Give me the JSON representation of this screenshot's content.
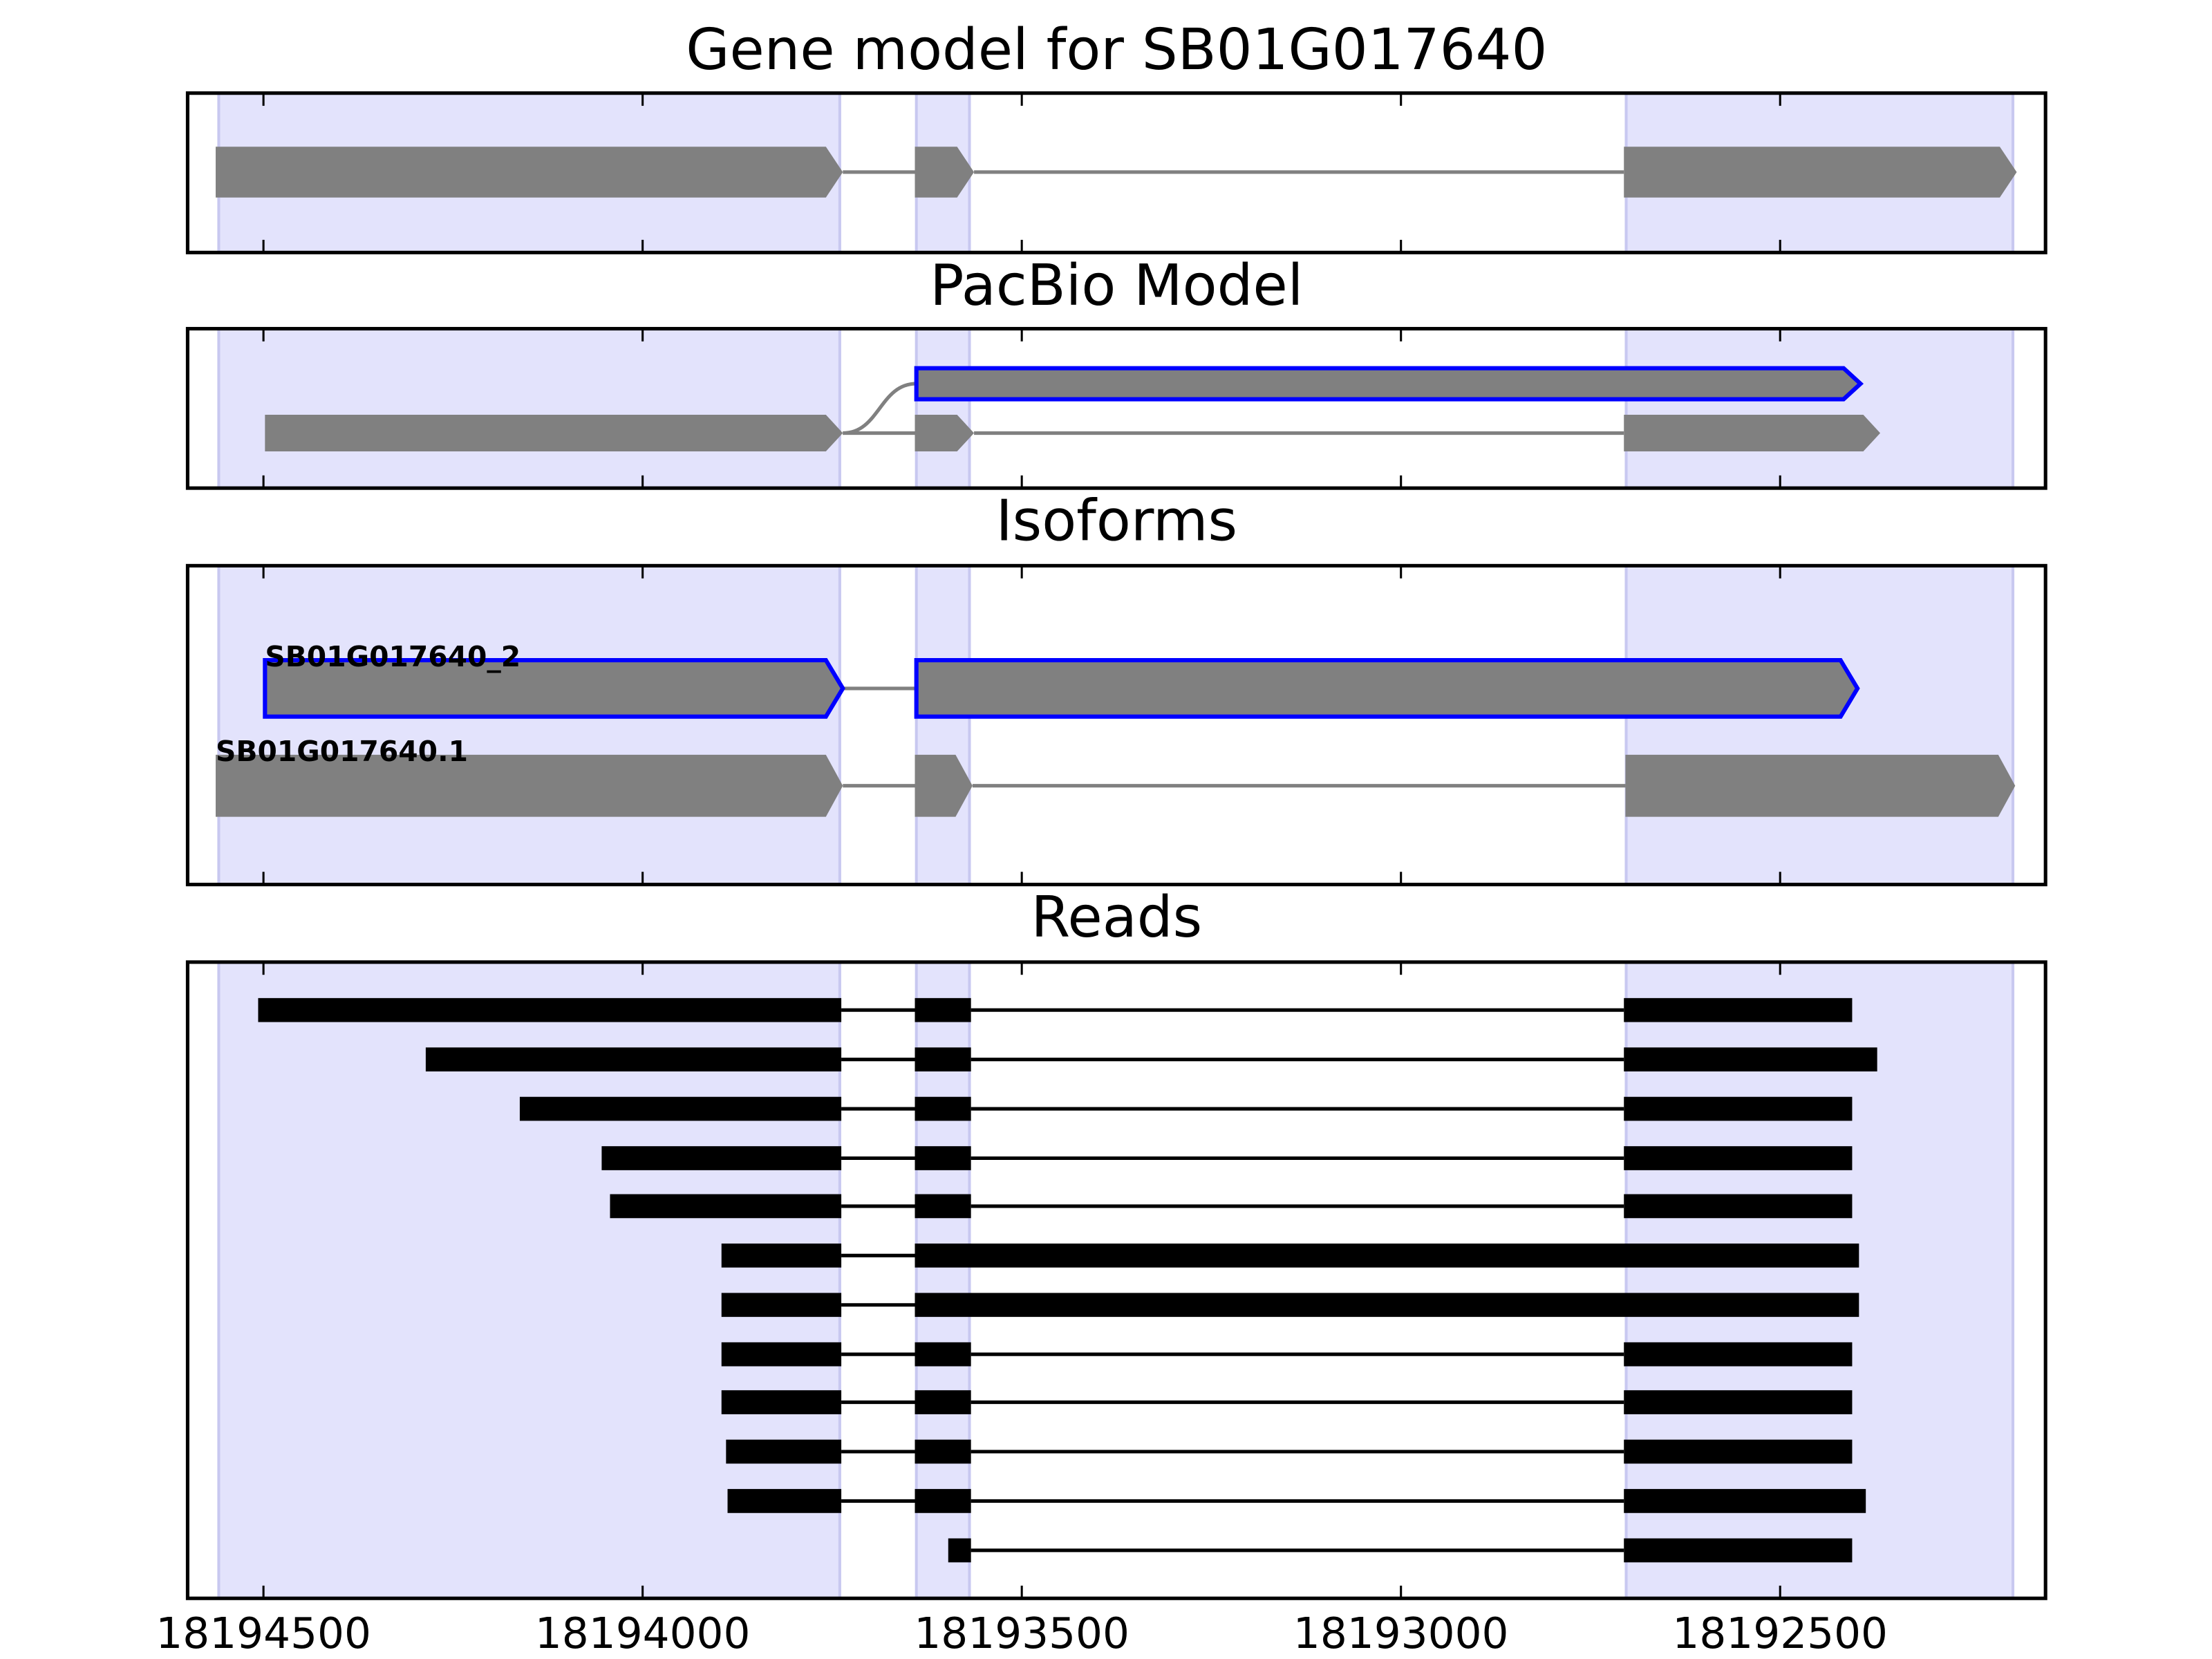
{
  "chart_data": [
    {
      "type": "gene",
      "title": "Gene model for SB01G017640",
      "xlim": [
        18194600,
        18192150
      ],
      "xticks": [
        18194500,
        18194000,
        18193500,
        18193000,
        18192500
      ],
      "highlights": [
        [
          18194559,
          18193740
        ],
        [
          18193639,
          18193569
        ],
        [
          18192703,
          18192193
        ]
      ],
      "highlight_color": "#e3e3fc",
      "color": "#808080",
      "line_color": "#808080",
      "rows": [
        {
          "blocks": [
            [
              18194563,
              18193736
            ],
            [
              18193641,
              18193563
            ],
            [
              18192706,
              18192188
            ]
          ]
        }
      ]
    },
    {
      "type": "gene",
      "title": "PacBio Model",
      "xlim": [
        18194600,
        18192150
      ],
      "xticks": [
        18194500,
        18194000,
        18193500,
        18193000,
        18192500
      ],
      "highlights": [
        [
          18194559,
          18193740
        ],
        [
          18193639,
          18193569
        ],
        [
          18192703,
          18192193
        ]
      ],
      "highlight_color": "#e3e3fc",
      "color": "#808080",
      "line_color": "#808080",
      "rows": [
        {
          "outline": "#0000ff",
          "blocks": [
            [
              18193639,
              18192394
            ]
          ]
        },
        {
          "blocks": [
            [
              18194498,
              18193736
            ],
            [
              18193641,
              18193563
            ],
            [
              18192706,
              18192368
            ]
          ]
        }
      ]
    },
    {
      "type": "gene",
      "title": "Isoforms",
      "xlim": [
        18194600,
        18192150
      ],
      "xticks": [
        18194500,
        18194000,
        18193500,
        18193000,
        18192500
      ],
      "highlights": [
        [
          18194559,
          18193740
        ],
        [
          18193639,
          18193569
        ],
        [
          18192703,
          18192193
        ]
      ],
      "highlight_color": "#e3e3fc",
      "color": "#808080",
      "line_color": "#808080",
      "rows": [
        {
          "label": "SB01G017640_2",
          "outline": "#0000ff",
          "blocks": [
            [
              18194498,
              18193736
            ],
            [
              18193639,
              18192398
            ]
          ]
        },
        {
          "label": "SB01G017640.1",
          "blocks": [
            [
              18194563,
              18193736
            ],
            [
              18193641,
              18193565
            ],
            [
              18192704,
              18192190
            ]
          ]
        }
      ]
    },
    {
      "type": "reads",
      "title": "Reads",
      "xlim": [
        18194600,
        18192150
      ],
      "xticks": [
        18194500,
        18194000,
        18193500,
        18193000,
        18192500
      ],
      "highlights": [
        [
          18194559,
          18193740
        ],
        [
          18193639,
          18193569
        ],
        [
          18192703,
          18192193
        ]
      ],
      "highlight_color": "#e3e3fc",
      "color": "#000000",
      "line_color": "#000000",
      "rows": [
        {
          "blocks": [
            [
              18194507,
              18193738
            ],
            [
              18193641,
              18193567
            ],
            [
              18192706,
              18192405
            ]
          ]
        },
        {
          "blocks": [
            [
              18194286,
              18193738
            ],
            [
              18193641,
              18193567
            ],
            [
              18192706,
              18192372
            ]
          ]
        },
        {
          "blocks": [
            [
              18194162,
              18193738
            ],
            [
              18193641,
              18193567
            ],
            [
              18192706,
              18192405
            ]
          ]
        },
        {
          "blocks": [
            [
              18194054,
              18193738
            ],
            [
              18193641,
              18193567
            ],
            [
              18192706,
              18192405
            ]
          ]
        },
        {
          "blocks": [
            [
              18194043,
              18193738
            ],
            [
              18193641,
              18193567
            ],
            [
              18192706,
              18192405
            ]
          ]
        },
        {
          "blocks": [
            [
              18193896,
              18193738
            ],
            [
              18193641,
              18192396
            ]
          ]
        },
        {
          "blocks": [
            [
              18193896,
              18193738
            ],
            [
              18193641,
              18192396
            ]
          ]
        },
        {
          "blocks": [
            [
              18193896,
              18193738
            ],
            [
              18193641,
              18193567
            ],
            [
              18192706,
              18192405
            ]
          ]
        },
        {
          "blocks": [
            [
              18193896,
              18193738
            ],
            [
              18193641,
              18193567
            ],
            [
              18192706,
              18192405
            ]
          ]
        },
        {
          "blocks": [
            [
              18193890,
              18193738
            ],
            [
              18193641,
              18193567
            ],
            [
              18192706,
              18192405
            ]
          ]
        },
        {
          "blocks": [
            [
              18193888,
              18193738
            ],
            [
              18193641,
              18193567
            ],
            [
              18192706,
              18192387
            ]
          ]
        },
        {
          "blocks": [
            [
              18193597,
              18193567
            ],
            [
              18192706,
              18192405
            ]
          ]
        }
      ]
    }
  ]
}
